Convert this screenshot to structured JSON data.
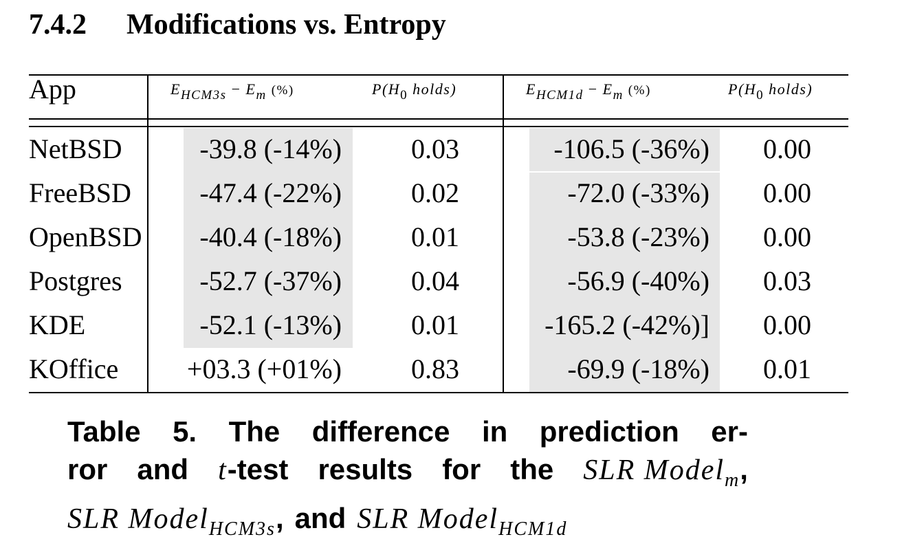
{
  "section": {
    "number": "7.4.2",
    "title": "Modifications vs. Entropy"
  },
  "table": {
    "headers": {
      "app": "App",
      "col1_lhs": "E",
      "col1_sub": "HCM3s",
      "col1_rhs": "E",
      "col1_rhs_sub": "m",
      "col1_unit": "(%)",
      "col2_prefix": "P(",
      "col2_var": "H",
      "col2_sub": "0",
      "col2_suffix": "holds)",
      "col3_lhs": "E",
      "col3_sub": "HCM1d",
      "col3_rhs": "E",
      "col3_rhs_sub": "m",
      "col3_unit": "(%)",
      "col4_prefix": "P(",
      "col4_var": "H",
      "col4_sub": "0",
      "col4_suffix": "holds)"
    },
    "rows": [
      {
        "app": "NetBSD",
        "hcm3s_diff": "-39.8 (-14%)",
        "p1": "0.03",
        "hcm1d_diff": "-106.5 (-36%)",
        "p2": "0.00"
      },
      {
        "app": "FreeBSD",
        "hcm3s_diff": "-47.4 (-22%)",
        "p1": "0.02",
        "hcm1d_diff": "-72.0 (-33%)",
        "p2": "0.00"
      },
      {
        "app": "OpenBSD",
        "hcm3s_diff": "-40.4 (-18%)",
        "p1": "0.01",
        "hcm1d_diff": "-53.8 (-23%)",
        "p2": "0.00"
      },
      {
        "app": "Postgres",
        "hcm3s_diff": "-52.7 (-37%)",
        "p1": "0.04",
        "hcm1d_diff": "-56.9 (-40%)",
        "p2": "0.03"
      },
      {
        "app": "KDE",
        "hcm3s_diff": "-52.1 (-13%)",
        "p1": "0.01",
        "hcm1d_diff": "-165.2 (-42%)]",
        "p2": "0.00"
      },
      {
        "app": "KOffice",
        "hcm3s_diff": "+03.3 (+01%)",
        "p1": "0.83",
        "hcm1d_diff": "-69.9 (-18%)",
        "p2": "0.01"
      }
    ]
  },
  "caption": {
    "line1_words": [
      "Table",
      "5.",
      "The",
      "difference",
      "in",
      "prediction",
      "er-"
    ],
    "line2_words": [
      "ror",
      "and"
    ],
    "t_var": "t",
    "line2_after_t": "-test",
    "line2_words_b": [
      "results",
      "for",
      "the"
    ],
    "model_base": "SLR Model",
    "model_m_sub": "m",
    "comma": ",",
    "model_hcm3s_sub": "HCM3s",
    "and_word": "and",
    "model_hcm1d_sub": "HCM1d"
  }
}
